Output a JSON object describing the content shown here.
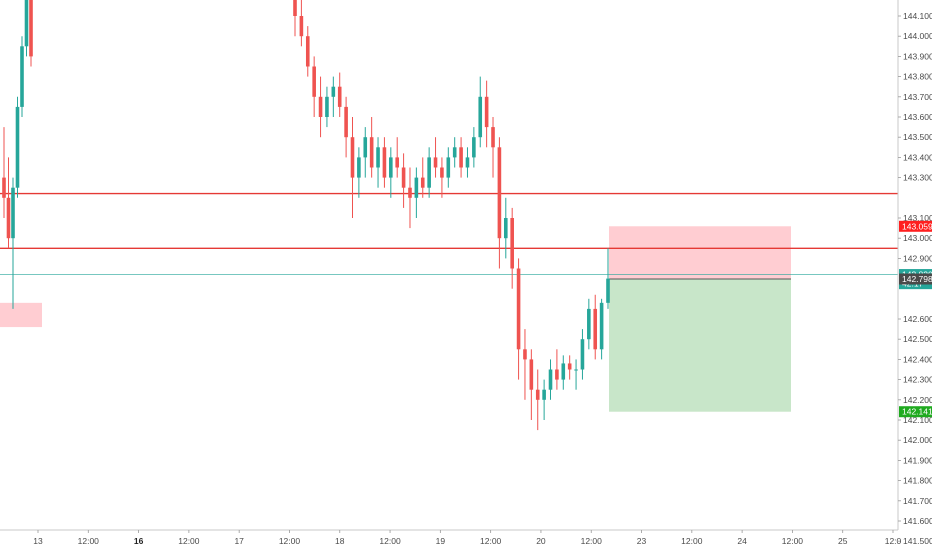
{
  "chart_data": {
    "type": "candlestick",
    "price_axis": {
      "ticks": [
        "144.100",
        "144.000",
        "143.900",
        "143.800",
        "143.700",
        "143.600",
        "143.500",
        "143.400",
        "143.300",
        "143.100",
        "143.000",
        "142.900",
        "142.600",
        "142.500",
        "142.400",
        "142.300",
        "142.200",
        "142.100",
        "142.000",
        "141.900",
        "141.800",
        "141.700",
        "141.600",
        "141.500"
      ],
      "ylim": [
        141.45,
        144.18
      ]
    },
    "time_axis": {
      "ticks": [
        {
          "label": "13",
          "bold": false
        },
        {
          "label": "12:00",
          "bold": false
        },
        {
          "label": "16",
          "bold": true
        },
        {
          "label": "12:00",
          "bold": false
        },
        {
          "label": "17",
          "bold": false
        },
        {
          "label": "12:00",
          "bold": false
        },
        {
          "label": "18",
          "bold": false
        },
        {
          "label": "12:00",
          "bold": false
        },
        {
          "label": "19",
          "bold": false
        },
        {
          "label": "12:00",
          "bold": false
        },
        {
          "label": "20",
          "bold": false
        },
        {
          "label": "12:00",
          "bold": false
        },
        {
          "label": "23",
          "bold": false
        },
        {
          "label": "12:00",
          "bold": false
        },
        {
          "label": "24",
          "bold": false
        },
        {
          "label": "12:00",
          "bold": false
        },
        {
          "label": "25",
          "bold": false
        },
        {
          "label": "12:0",
          "bold": false
        }
      ]
    },
    "levels": [
      {
        "price": 143.221,
        "label": "143.221",
        "color": "#e53935",
        "kind": "line"
      },
      {
        "price": 142.95,
        "label": "142.950",
        "color": "#e53935",
        "kind": "line"
      },
      {
        "price": 142.82,
        "label": "142.820",
        "color": "#26a69a",
        "kind": "thin-line"
      }
    ],
    "badges": [
      {
        "price": 143.059,
        "label": "143.059",
        "color": "#ff1f1f"
      },
      {
        "price": 142.82,
        "label": "142.820",
        "color": "#26a69a"
      },
      {
        "price": 142.775,
        "label": "42:17",
        "color": "#26a69a"
      },
      {
        "price": 142.798,
        "label": "142.798",
        "color": "#4a4a4a"
      },
      {
        "price": 142.141,
        "label": "142.141",
        "color": "#1faa1f"
      }
    ],
    "position": {
      "entry": 142.798,
      "stop": 143.059,
      "target": 142.141,
      "stop_color": "#ffcdd2",
      "target_color": "#c8e6c9"
    },
    "zone": {
      "top": 142.68,
      "bottom": 142.56,
      "color": "#ffcdd2"
    },
    "up_color": "#26a69a",
    "down_color": "#ef5350",
    "candles": [
      [
        143.3,
        143.55,
        143.1,
        143.2
      ],
      [
        143.2,
        143.4,
        142.95,
        143.0
      ],
      [
        143.0,
        143.3,
        142.65,
        143.25
      ],
      [
        143.25,
        143.7,
        143.2,
        143.65
      ],
      [
        143.65,
        144.0,
        143.6,
        143.95
      ],
      [
        143.95,
        144.3,
        143.9,
        144.25
      ],
      [
        144.25,
        144.4,
        143.85,
        143.9
      ],
      [
        144.2,
        144.35,
        144.0,
        144.1
      ],
      [
        144.1,
        144.2,
        143.95,
        144.0
      ],
      [
        144.0,
        144.05,
        143.8,
        143.85
      ],
      [
        143.85,
        143.9,
        143.6,
        143.7
      ],
      [
        143.7,
        143.8,
        143.5,
        143.6
      ],
      [
        143.6,
        143.75,
        143.55,
        143.7
      ],
      [
        143.7,
        143.8,
        143.6,
        143.75
      ],
      [
        143.75,
        143.82,
        143.6,
        143.65
      ],
      [
        143.65,
        143.7,
        143.4,
        143.5
      ],
      [
        143.5,
        143.6,
        143.1,
        143.3
      ],
      [
        143.3,
        143.45,
        143.2,
        143.4
      ],
      [
        143.4,
        143.55,
        143.3,
        143.5
      ],
      [
        143.5,
        143.6,
        143.3,
        143.35
      ],
      [
        143.35,
        143.5,
        143.25,
        143.45
      ],
      [
        143.45,
        143.5,
        143.25,
        143.3
      ],
      [
        143.3,
        143.45,
        143.2,
        143.4
      ],
      [
        143.4,
        143.5,
        143.3,
        143.35
      ],
      [
        143.35,
        143.42,
        143.15,
        143.25
      ],
      [
        143.25,
        143.35,
        143.05,
        143.2
      ],
      [
        143.2,
        143.35,
        143.1,
        143.3
      ],
      [
        143.3,
        143.4,
        143.2,
        143.25
      ],
      [
        143.25,
        143.45,
        143.2,
        143.4
      ],
      [
        143.4,
        143.5,
        143.3,
        143.35
      ],
      [
        143.35,
        143.4,
        143.2,
        143.3
      ],
      [
        143.3,
        143.45,
        143.25,
        143.4
      ],
      [
        143.4,
        143.5,
        143.35,
        143.45
      ],
      [
        143.45,
        143.5,
        143.3,
        143.35
      ],
      [
        143.35,
        143.45,
        143.3,
        143.4
      ],
      [
        143.4,
        143.55,
        143.35,
        143.5
      ],
      [
        143.5,
        143.8,
        143.45,
        143.7
      ],
      [
        143.7,
        143.78,
        143.45,
        143.55
      ],
      [
        143.55,
        143.6,
        143.3,
        143.45
      ],
      [
        143.45,
        143.5,
        142.85,
        143.0
      ],
      [
        143.0,
        143.2,
        142.9,
        143.1
      ],
      [
        143.1,
        143.15,
        142.75,
        142.85
      ],
      [
        142.85,
        142.9,
        142.3,
        142.45
      ],
      [
        142.45,
        142.55,
        142.2,
        142.4
      ],
      [
        142.4,
        142.45,
        142.1,
        142.25
      ],
      [
        142.25,
        142.35,
        142.05,
        142.2
      ],
      [
        142.2,
        142.3,
        142.1,
        142.25
      ],
      [
        142.25,
        142.4,
        142.2,
        142.35
      ],
      [
        142.35,
        142.45,
        142.25,
        142.3
      ],
      [
        142.3,
        142.42,
        142.25,
        142.38
      ],
      [
        142.38,
        142.42,
        142.3,
        142.35
      ],
      [
        142.35,
        142.4,
        142.25,
        142.35
      ],
      [
        142.35,
        142.55,
        142.3,
        142.5
      ],
      [
        142.5,
        142.7,
        142.45,
        142.65
      ],
      [
        142.65,
        142.72,
        142.4,
        142.45
      ],
      [
        142.45,
        142.7,
        142.4,
        142.68
      ],
      [
        142.68,
        142.95,
        142.65,
        142.8
      ]
    ]
  }
}
